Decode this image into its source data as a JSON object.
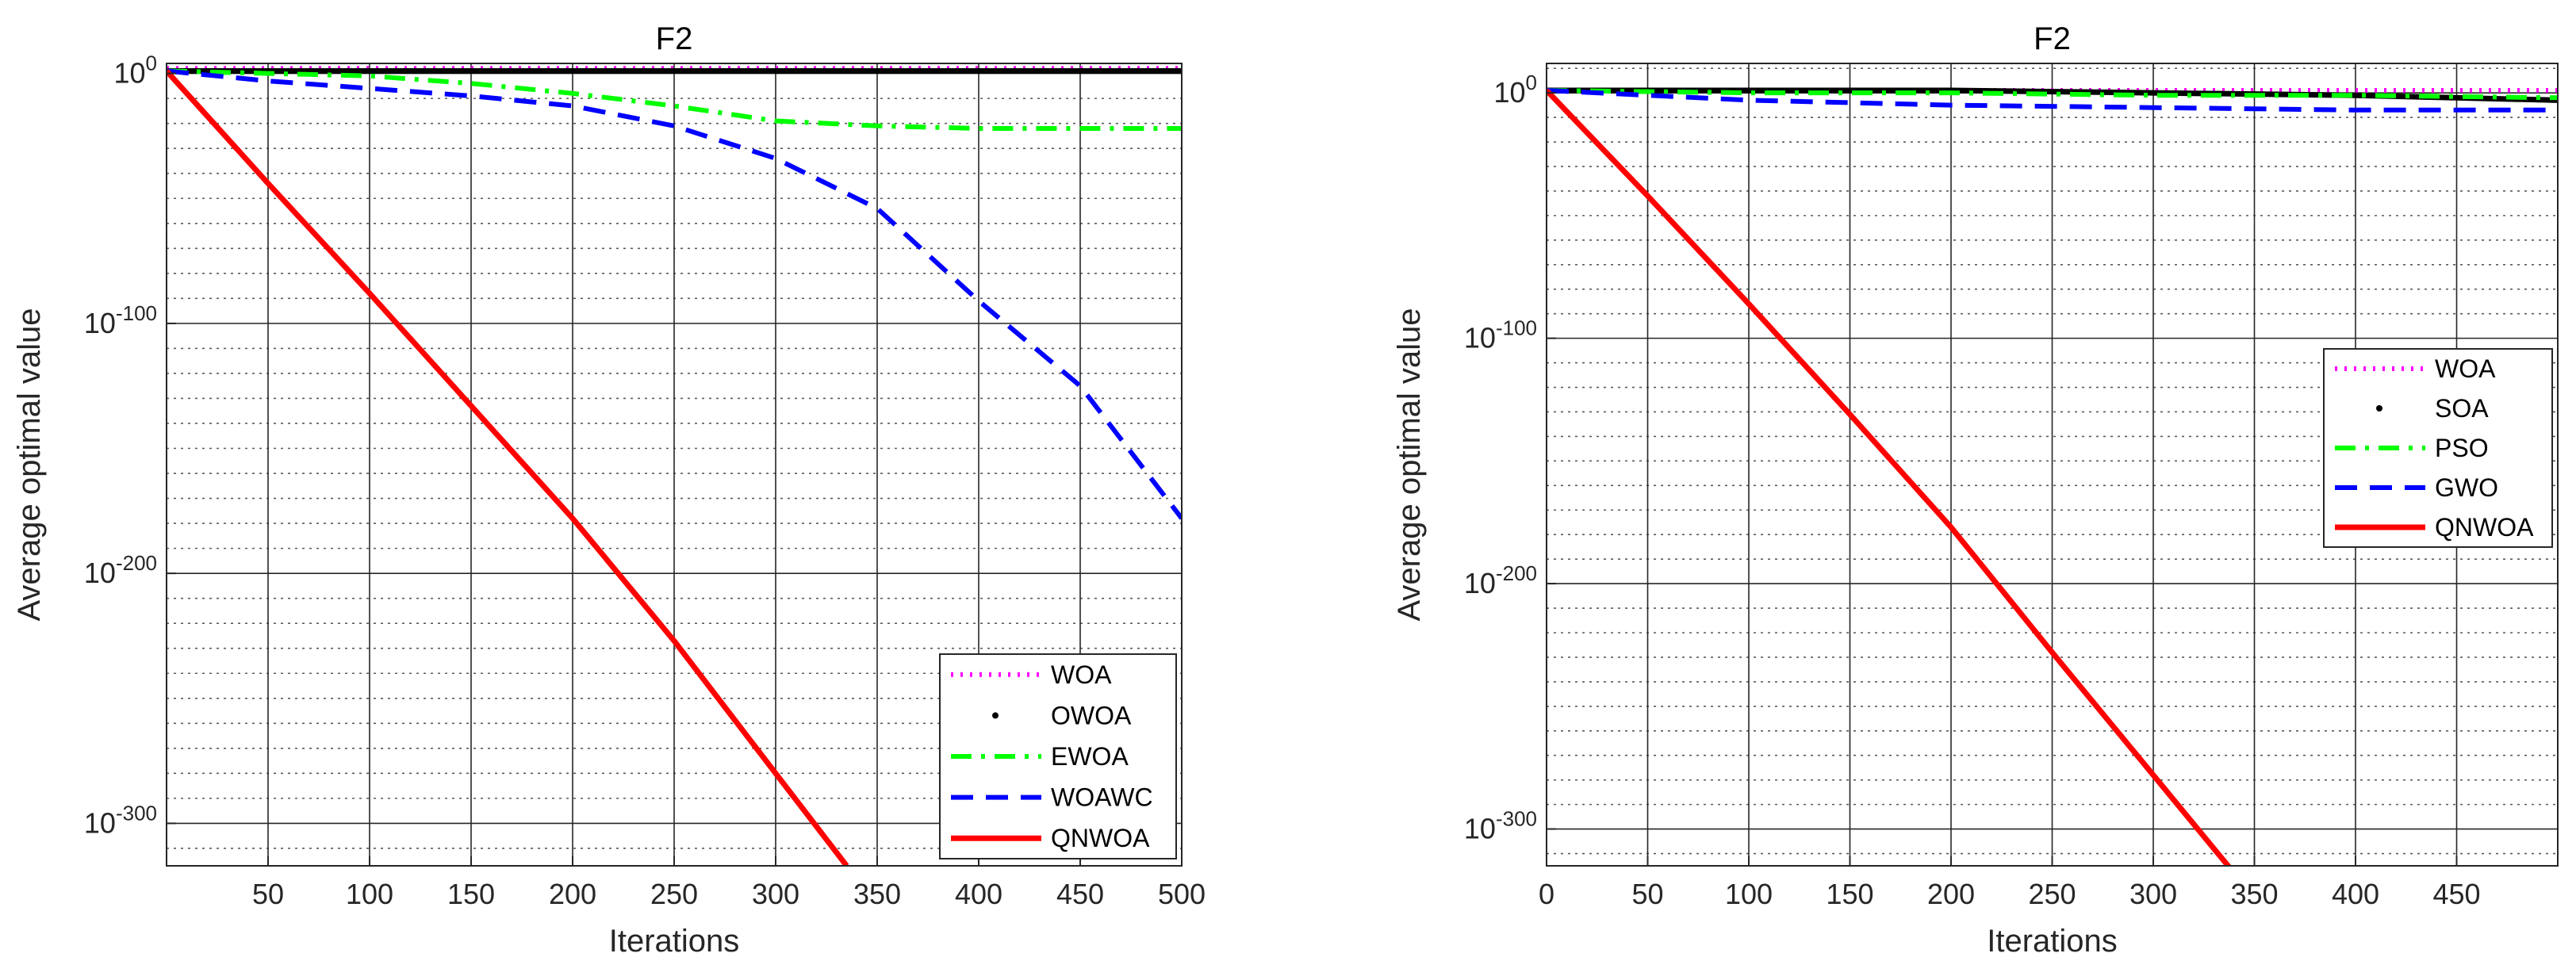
{
  "chart_data": [
    {
      "type": "line",
      "title": "F2",
      "xlabel": "Iterations",
      "ylabel": "Average optimal value",
      "yscale": "log",
      "xlim": [
        0,
        500
      ],
      "ylim_exp": [
        -317,
        4
      ],
      "grid": true,
      "legend_position": "bottom-right",
      "x_tick_labels": [
        "50",
        "100",
        "150",
        "200",
        "250",
        "300",
        "350",
        "400",
        "450",
        "500"
      ],
      "y_tick_labels": [
        {
          "base": "10",
          "exp": "0",
          "plain": "1"
        },
        {
          "base": "10",
          "exp": "-100"
        },
        {
          "base": "10",
          "exp": "-200"
        },
        {
          "base": "10",
          "exp": "-300"
        }
      ],
      "series": [
        {
          "name": "WOA",
          "color": "#ff00ff",
          "style": "dotted",
          "x": [
            0,
            500
          ],
          "y_exp": [
            2,
            2
          ]
        },
        {
          "name": "OWOA",
          "color": "#000000",
          "style": "dots",
          "x": [
            0,
            500
          ],
          "y_exp": [
            1,
            1
          ]
        },
        {
          "name": "EWOA",
          "color": "#00ff00",
          "style": "dashdot",
          "x": [
            0,
            50,
            100,
            150,
            200,
            250,
            300,
            350,
            400,
            450,
            500
          ],
          "y_exp": [
            1,
            0,
            -1,
            -4,
            -8,
            -13,
            -19,
            -21,
            -22,
            -22,
            -22
          ]
        },
        {
          "name": "WOAWC",
          "color": "#0000ff",
          "style": "dashed",
          "x": [
            0,
            50,
            100,
            150,
            200,
            250,
            300,
            350,
            400,
            450,
            500
          ],
          "y_exp": [
            1,
            -3,
            -6,
            -9,
            -13,
            -21,
            -34,
            -54,
            -91,
            -125,
            -178
          ]
        },
        {
          "name": "QNWOA",
          "color": "#ff0000",
          "style": "solid",
          "x": [
            0,
            50,
            100,
            150,
            200,
            250,
            300,
            335
          ],
          "y_exp": [
            1,
            -44,
            -88,
            -133,
            -178,
            -227,
            -280,
            -317
          ]
        }
      ]
    },
    {
      "type": "line",
      "title": "F2",
      "xlabel": "Iterations",
      "ylabel": "Average optimal value",
      "yscale": "log",
      "xlim": [
        0,
        500
      ],
      "ylim_exp": [
        -315,
        12
      ],
      "grid": true,
      "legend_position": "top-right",
      "x_tick_labels": [
        "0",
        "50",
        "100",
        "150",
        "200",
        "250",
        "300",
        "350",
        "400",
        "450"
      ],
      "y_tick_labels": [
        {
          "base": "10",
          "exp": "0",
          "plain": "1"
        },
        {
          "base": "10",
          "exp": "-100"
        },
        {
          "base": "10",
          "exp": "-200"
        },
        {
          "base": "10",
          "exp": "-300"
        }
      ],
      "series": [
        {
          "name": "WOA",
          "color": "#ff00ff",
          "style": "dotted",
          "x": [
            0,
            100,
            200,
            300,
            400,
            500
          ],
          "y_exp": [
            1,
            1,
            1,
            1,
            1,
            1
          ]
        },
        {
          "name": "SOA",
          "color": "#000000",
          "style": "dots",
          "x": [
            0,
            100,
            200,
            300,
            400,
            500
          ],
          "y_exp": [
            1,
            1,
            1,
            0,
            -1,
            -3
          ]
        },
        {
          "name": "PSO",
          "color": "#00ff00",
          "style": "dashdot",
          "x": [
            0,
            100,
            200,
            300,
            400,
            500
          ],
          "y_exp": [
            1,
            0,
            0,
            -1,
            -1,
            -2
          ]
        },
        {
          "name": "GWO",
          "color": "#0000ff",
          "style": "dashed",
          "x": [
            0,
            50,
            100,
            200,
            300,
            400,
            500
          ],
          "y_exp": [
            1,
            -1,
            -3,
            -5,
            -6,
            -7,
            -7
          ]
        },
        {
          "name": "QNWOA",
          "color": "#ff0000",
          "style": "solid",
          "x": [
            0,
            50,
            100,
            150,
            200,
            250,
            300,
            338
          ],
          "y_exp": [
            1,
            -42,
            -86,
            -131,
            -177,
            -228,
            -278,
            -316
          ]
        }
      ]
    }
  ]
}
